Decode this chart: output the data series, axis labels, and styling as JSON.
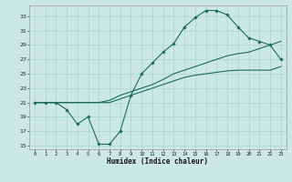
{
  "xlabel": "Humidex (Indice chaleur)",
  "bg_color": "#cce8e4",
  "grid_color": "#aad4d0",
  "line_color": "#1a6b5a",
  "xlim": [
    -0.5,
    23.5
  ],
  "ylim": [
    14.5,
    34.5
  ],
  "yticks": [
    15,
    17,
    19,
    21,
    23,
    25,
    27,
    29,
    31,
    33
  ],
  "xticks": [
    0,
    1,
    2,
    3,
    4,
    5,
    6,
    7,
    8,
    9,
    10,
    11,
    12,
    13,
    14,
    15,
    16,
    17,
    18,
    19,
    20,
    21,
    22,
    23
  ],
  "curve1_x": [
    0,
    1,
    2,
    3,
    4,
    5,
    6,
    7,
    8,
    9,
    10,
    11,
    12,
    13,
    14,
    15,
    16,
    17,
    18,
    19,
    20,
    21,
    22,
    23
  ],
  "curve1_y": [
    21,
    21,
    21,
    20,
    18,
    19,
    15.2,
    15.2,
    17,
    22,
    25,
    26.5,
    28,
    29.2,
    31.5,
    32.8,
    33.8,
    33.8,
    33.2,
    31.5,
    30,
    29.5,
    29,
    27
  ],
  "curve2_x": [
    0,
    1,
    2,
    3,
    4,
    5,
    6,
    7,
    8,
    9,
    10,
    11,
    12,
    13,
    14,
    15,
    16,
    17,
    18,
    19,
    20,
    21,
    22,
    23
  ],
  "curve2_y": [
    21,
    21,
    21,
    21,
    21,
    21,
    21,
    21.3,
    22,
    22.5,
    23,
    23.5,
    24.2,
    25,
    25.5,
    26,
    26.5,
    27,
    27.5,
    27.8,
    28,
    28.5,
    29,
    29.5
  ],
  "curve3_x": [
    0,
    1,
    2,
    3,
    4,
    5,
    6,
    7,
    8,
    9,
    10,
    11,
    12,
    13,
    14,
    15,
    16,
    17,
    18,
    19,
    20,
    21,
    22,
    23
  ],
  "curve3_y": [
    21,
    21,
    21,
    21,
    21,
    21,
    21,
    21,
    21.5,
    22,
    22.5,
    23,
    23.5,
    24,
    24.5,
    24.8,
    25,
    25.2,
    25.4,
    25.5,
    25.5,
    25.5,
    25.5,
    26
  ]
}
